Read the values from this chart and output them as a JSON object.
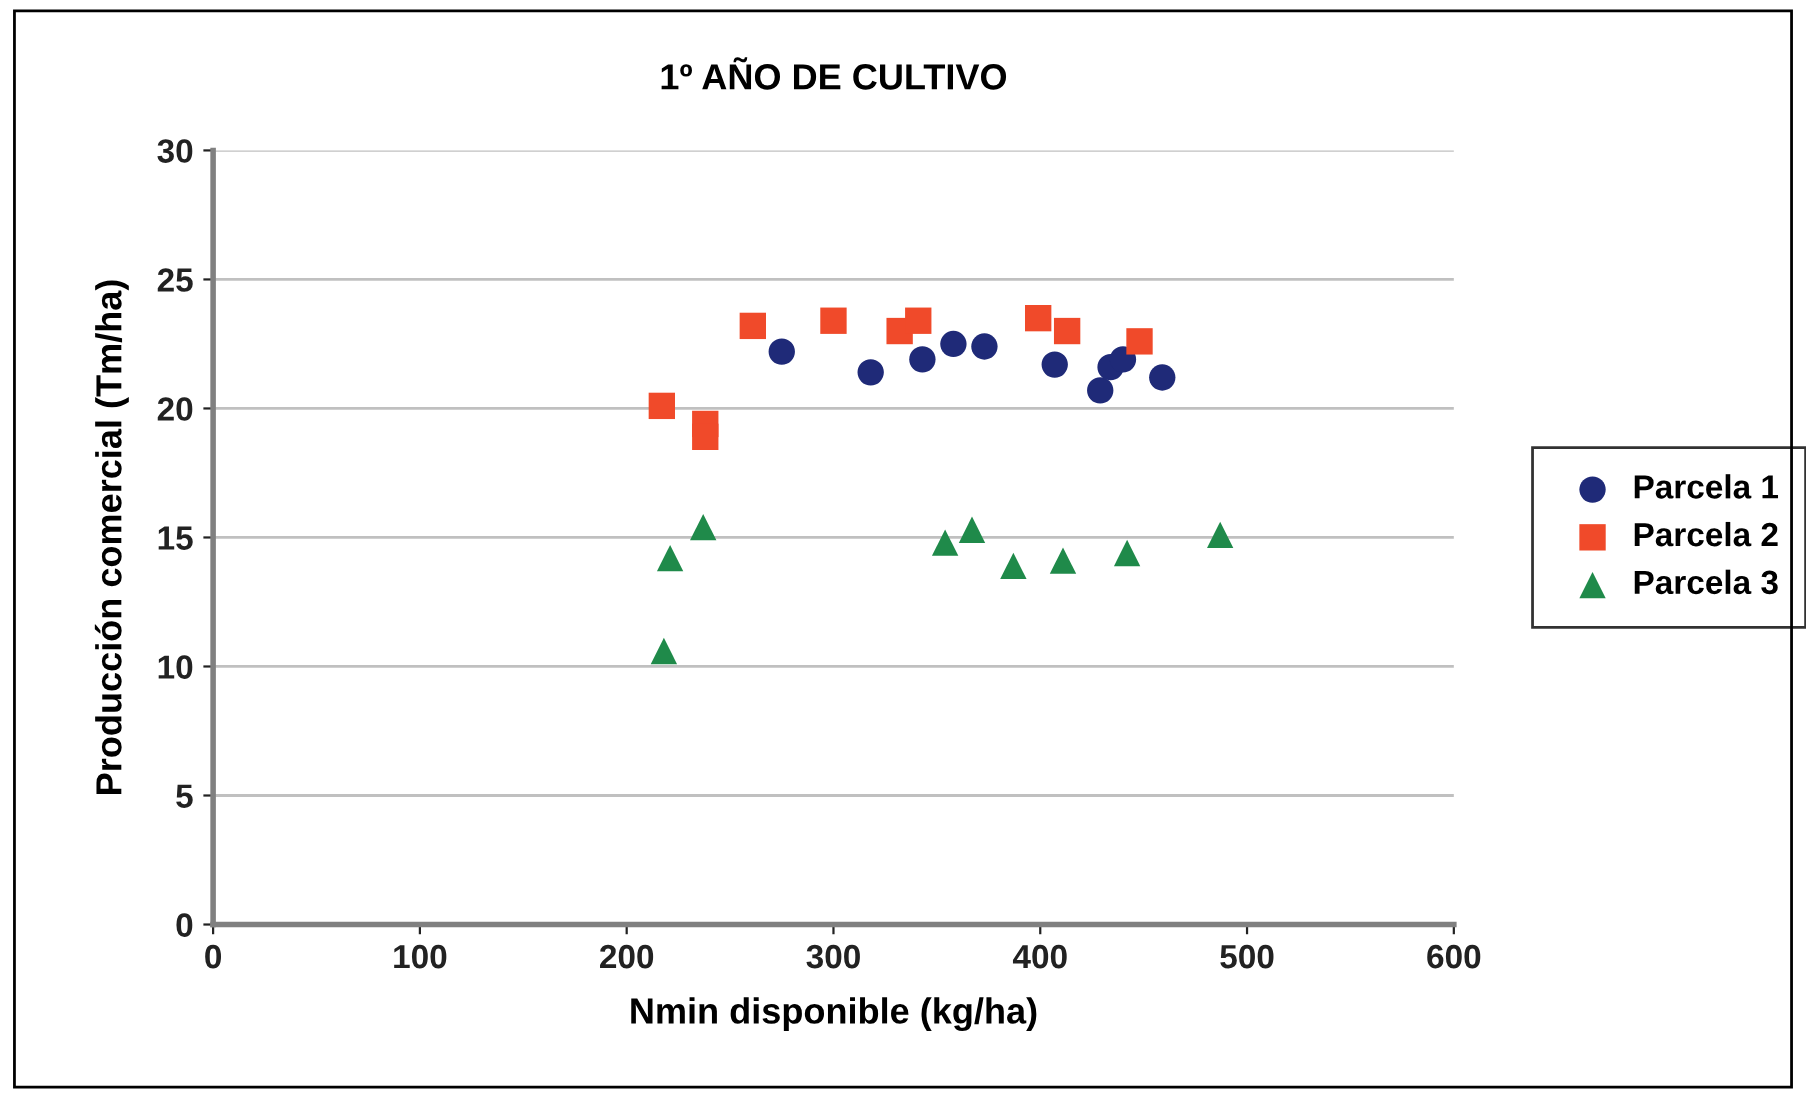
{
  "chart_data": {
    "type": "scatter",
    "title": "1º AÑO DE CULTIVO",
    "xlabel": "Nmin disponible (kg/ha)",
    "ylabel": "Producción comercial (Tm/ha)",
    "xlim": [
      0,
      600
    ],
    "xticks": [
      0,
      100,
      200,
      300,
      400,
      500,
      600
    ],
    "ylim": [
      0,
      30
    ],
    "yticks": [
      0,
      5,
      10,
      15,
      20,
      25,
      30
    ],
    "grid": "y",
    "legend": "right",
    "series": [
      {
        "name": "Parcela 1",
        "color": "#1f2a78",
        "marker": "circle",
        "x": [
          275,
          318,
          343,
          358,
          373,
          407,
          429,
          434,
          440,
          459
        ],
        "values": [
          22.2,
          21.4,
          21.9,
          22.5,
          22.4,
          21.7,
          20.7,
          21.6,
          21.9,
          21.2
        ]
      },
      {
        "name": "Parcela 2",
        "color": "#f04a2a",
        "marker": "square",
        "x": [
          217,
          238,
          238,
          261,
          300,
          332,
          341,
          399,
          413,
          448
        ],
        "values": [
          20.1,
          19.4,
          18.9,
          23.2,
          23.4,
          23.0,
          23.4,
          23.5,
          23.0,
          22.6
        ]
      },
      {
        "name": "Parcela 3",
        "color": "#1f8a4a",
        "marker": "triangle",
        "x": [
          218,
          221,
          237,
          354,
          367,
          387,
          411,
          442,
          487
        ],
        "values": [
          10.6,
          14.2,
          15.4,
          14.8,
          15.3,
          13.9,
          14.1,
          14.4,
          15.1
        ]
      }
    ]
  }
}
